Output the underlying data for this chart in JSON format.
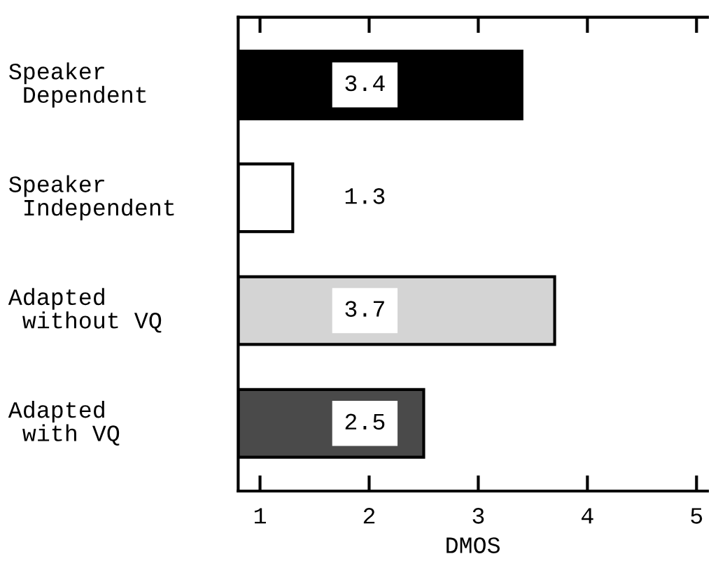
{
  "chart_data": {
    "type": "bar",
    "orientation": "horizontal",
    "xlabel": "DMOS",
    "categories": [
      "Speaker\n Dependent",
      "Speaker\n Independent",
      "Adapted\n without VQ",
      "Adapted\n with VQ"
    ],
    "values": [
      3.4,
      1.3,
      3.7,
      2.5
    ],
    "colors": [
      "#000000",
      "#ffffff",
      "#d4d4d4",
      "#4a4a4a"
    ],
    "xlim": [
      0.8,
      5.1
    ],
    "xticks": [
      1,
      2,
      3,
      4,
      5
    ],
    "data_labels": true,
    "grid": false,
    "legend": false
  }
}
